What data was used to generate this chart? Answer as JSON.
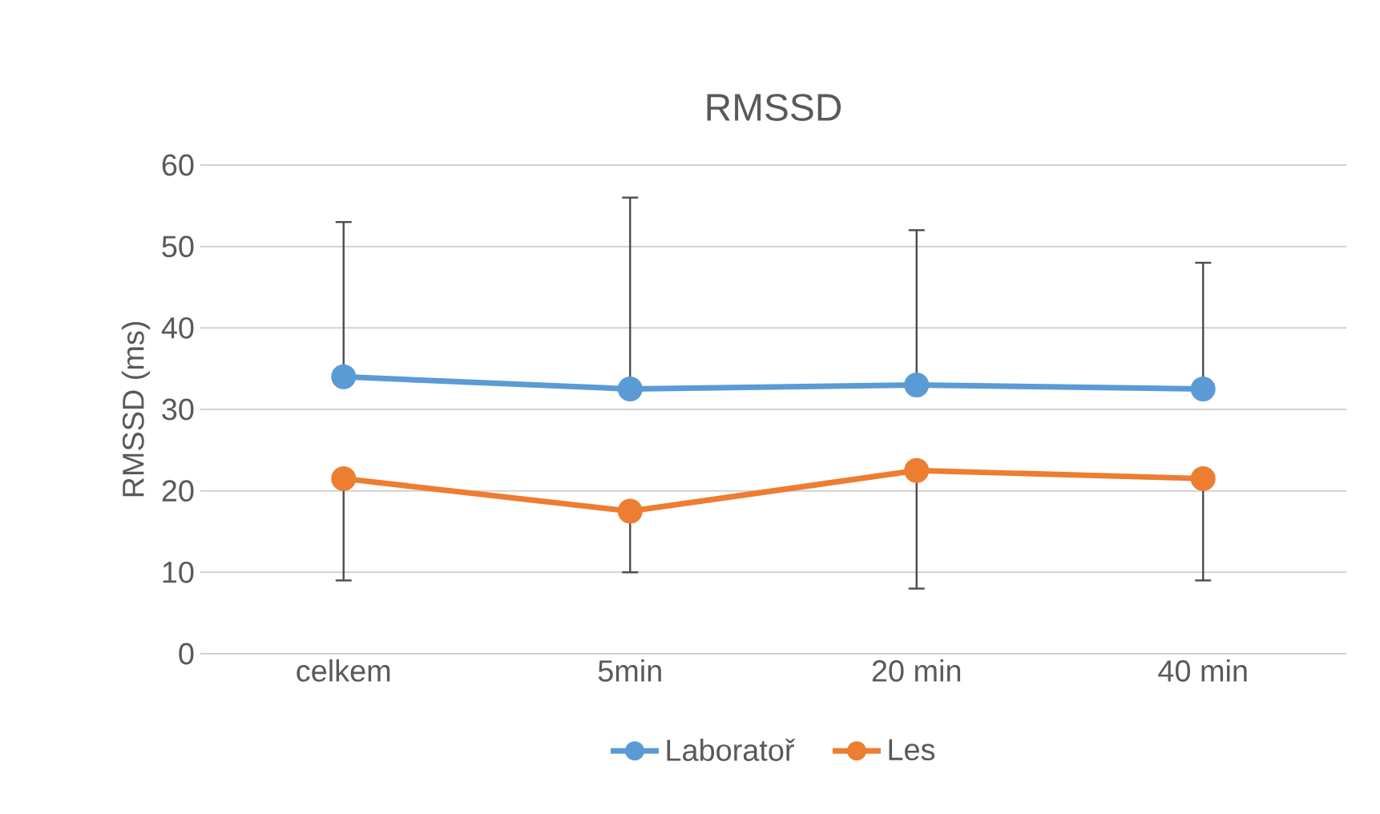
{
  "chart_data": {
    "type": "line",
    "title": "RMSSD",
    "ylabel": "RMSSD (ms)",
    "categories": [
      "celkem",
      "5min",
      "20 min",
      "40 min"
    ],
    "series": [
      {
        "name": "Laboratoř",
        "color": "#5b9bd5",
        "values": [
          34,
          32.5,
          33,
          32.5
        ],
        "errors": [
          [
            34,
            53
          ],
          [
            32.5,
            56
          ],
          [
            33,
            52
          ],
          [
            32.5,
            48
          ]
        ]
      },
      {
        "name": "Les",
        "color": "#ed7d31",
        "values": [
          21.5,
          17.5,
          22.5,
          21.5
        ],
        "errors": [
          [
            9,
            21.5
          ],
          [
            10,
            17.5
          ],
          [
            8,
            22.5
          ],
          [
            9,
            21.5
          ]
        ]
      }
    ],
    "ylim": [
      0,
      60
    ],
    "yticks": [
      0,
      10,
      20,
      30,
      40,
      50,
      60
    ],
    "grid": "y",
    "legend": "bottom",
    "marker": "circle",
    "line_style": "solid"
  }
}
